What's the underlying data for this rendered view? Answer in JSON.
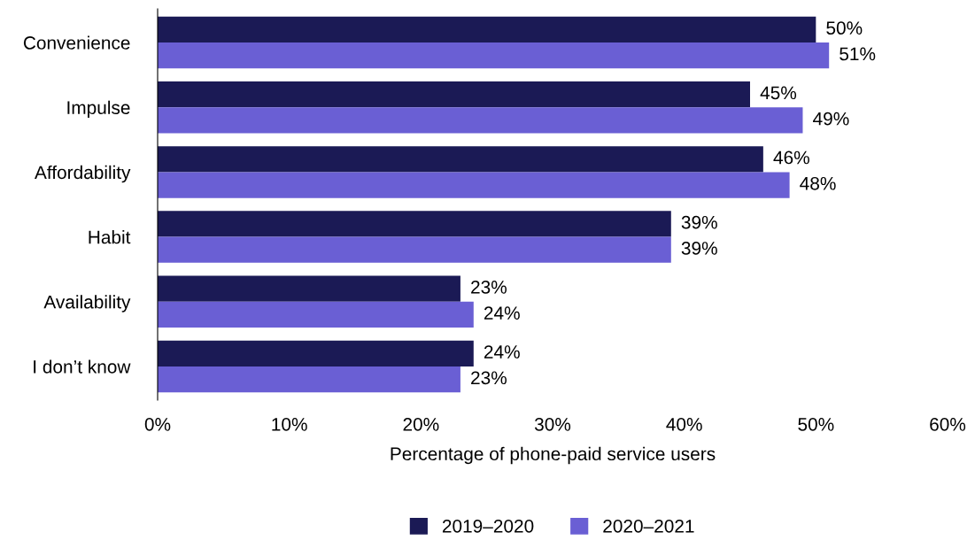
{
  "chart_data": {
    "type": "bar",
    "orientation": "horizontal",
    "categories": [
      "Convenience",
      "Impulse",
      "Affordability",
      "Habit",
      "Availability",
      "I don’t know"
    ],
    "series": [
      {
        "name": "2019–2020",
        "color": "#1b1a55",
        "values": [
          50,
          45,
          46,
          39,
          23,
          24
        ],
        "value_labels": [
          "50%",
          "45%",
          "46%",
          "39%",
          "23%",
          "24%"
        ]
      },
      {
        "name": "2020–2021",
        "color": "#6a5fd4",
        "values": [
          51,
          49,
          48,
          39,
          24,
          23
        ],
        "value_labels": [
          "51%",
          "49%",
          "48%",
          "39%",
          "24%",
          "23%"
        ]
      }
    ],
    "xlabel": "Percentage of phone-paid service users",
    "xlim": [
      0,
      60
    ],
    "xticks": [
      {
        "value": 0,
        "label": "0%"
      },
      {
        "value": 10,
        "label": "10%"
      },
      {
        "value": 20,
        "label": "20%"
      },
      {
        "value": 30,
        "label": "30%"
      },
      {
        "value": 40,
        "label": "40%"
      },
      {
        "value": 50,
        "label": "50%"
      },
      {
        "value": 60,
        "label": "60%"
      }
    ],
    "grid": false,
    "legend": "bottom"
  }
}
